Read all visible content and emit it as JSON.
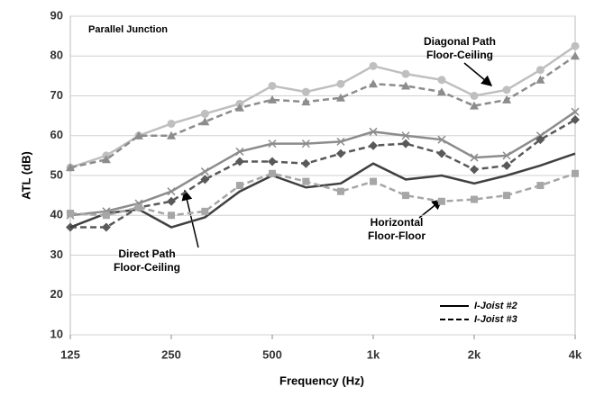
{
  "chart_data": {
    "type": "line",
    "title": "Parallel Junction",
    "x_label": "Frequency (Hz)",
    "y_label": "ATL (dB)",
    "x": [
      125,
      160,
      200,
      250,
      315,
      400,
      500,
      630,
      800,
      1000,
      1250,
      1600,
      2000,
      2500,
      3150,
      4000
    ],
    "xlim": [
      125,
      4000
    ],
    "xticks": [
      125,
      250,
      500,
      {
        "value": 1000,
        "label": "1k"
      },
      {
        "value": 2000,
        "label": "2k"
      },
      {
        "value": 4000,
        "label": "4k"
      }
    ],
    "log_x": true,
    "ylim": [
      10,
      90
    ],
    "yticks": [
      10,
      20,
      30,
      40,
      50,
      60,
      70,
      80,
      90
    ],
    "grid": true,
    "legend_position": "lower right",
    "legend": [
      {
        "label": "I-Joist #2",
        "style": "solid"
      },
      {
        "label": "I-Joist #3",
        "style": "dashed"
      }
    ],
    "annotations": [
      {
        "lines": [
          "Diagonal Path",
          "Floor-Ceiling"
        ]
      },
      {
        "lines": [
          "Direct Path",
          "Floor-Ceiling"
        ]
      },
      {
        "lines": [
          "Horizontal",
          "Floor-Floor"
        ]
      }
    ],
    "series": [
      {
        "style": "solid",
        "color": "#bfbfbf",
        "marker": "circle",
        "values": [
          52,
          55,
          60,
          63,
          65.5,
          68,
          72.5,
          71,
          73,
          77.5,
          75.5,
          74,
          70,
          71.5,
          76.5,
          82.5
        ]
      },
      {
        "style": "dashed",
        "color": "#8c8c8c",
        "marker": "triangle",
        "values": [
          52,
          54,
          60,
          60,
          63.5,
          67,
          69,
          68.5,
          69.5,
          73,
          72.5,
          71,
          67.5,
          69,
          74,
          80
        ]
      },
      {
        "style": "solid",
        "color": "#8c8c8c",
        "marker": "cross",
        "values": [
          40,
          41,
          43,
          46,
          51,
          56,
          58,
          58,
          58.5,
          61,
          60,
          59,
          54.5,
          55,
          60,
          66
        ]
      },
      {
        "style": "dashed",
        "color": "#595959",
        "marker": "diamond",
        "values": [
          37,
          37,
          42,
          43.5,
          49,
          53.5,
          53.5,
          53,
          55.5,
          57.5,
          58,
          55.5,
          51.5,
          52.5,
          59,
          64
        ]
      },
      {
        "style": "solid",
        "color": "#404040",
        "marker": "none",
        "values": [
          37,
          40.5,
          41.5,
          37,
          39.5,
          46,
          50,
          47,
          48,
          53,
          49,
          50,
          48,
          50,
          52.5,
          55.5
        ]
      },
      {
        "style": "dashed",
        "color": "#a6a6a6",
        "marker": "square",
        "values": [
          40.5,
          40,
          42,
          40,
          41,
          47.5,
          50.5,
          48.5,
          46,
          48.5,
          45,
          43.5,
          44,
          45,
          47.5,
          50.5
        ]
      }
    ]
  }
}
